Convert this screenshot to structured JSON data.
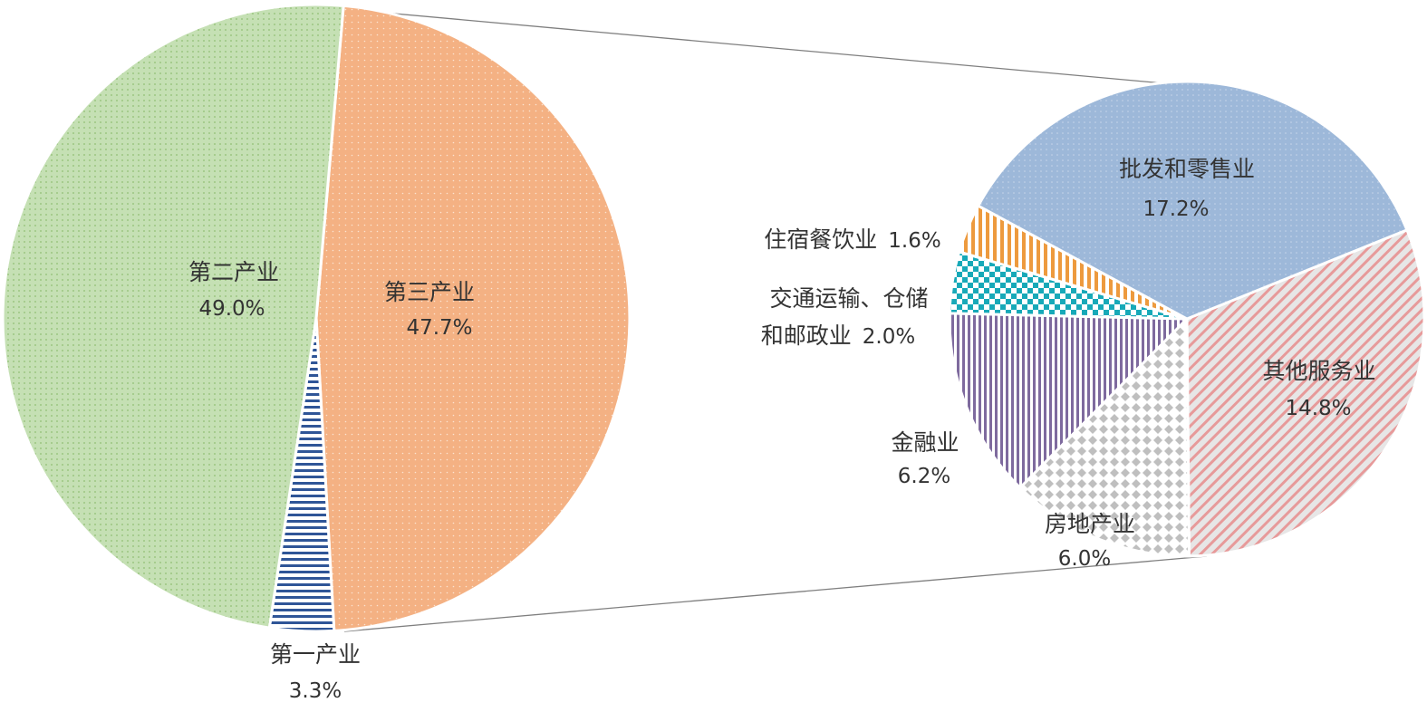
{
  "chart_data": [
    {
      "type": "pie",
      "slices": [
        {
          "label": "第三产业",
          "value": 47.7,
          "display": "47.7%",
          "color": "#F4B183"
        },
        {
          "label": "第一产业",
          "value": 3.3,
          "display": "3.3%",
          "color": "#2F5597"
        },
        {
          "label": "第二产业",
          "value": 49.0,
          "display": "49.0%",
          "color": "#C5E0B4"
        }
      ]
    },
    {
      "type": "pie",
      "slices": [
        {
          "label": "其他服务业",
          "value": 14.8,
          "display": "14.8%",
          "color": "#E79A9A"
        },
        {
          "label": "房地产业",
          "value": 6.0,
          "display": "6.0%",
          "color": "#BFBFBF"
        },
        {
          "label": "金融业",
          "value": 6.2,
          "display": "6.2%",
          "color": "#7E6A9E"
        },
        {
          "label": "交通运输、仓储和邮政业",
          "value": 2.0,
          "display": "2.0%",
          "color": "#17A9B8"
        },
        {
          "label": "住宿餐饮业",
          "value": 1.6,
          "display": "1.6%",
          "color": "#ED9A3E"
        },
        {
          "label": "批发和零售业",
          "value": 17.2,
          "display": "17.2%",
          "color": "#9DB8D9"
        }
      ]
    }
  ]
}
